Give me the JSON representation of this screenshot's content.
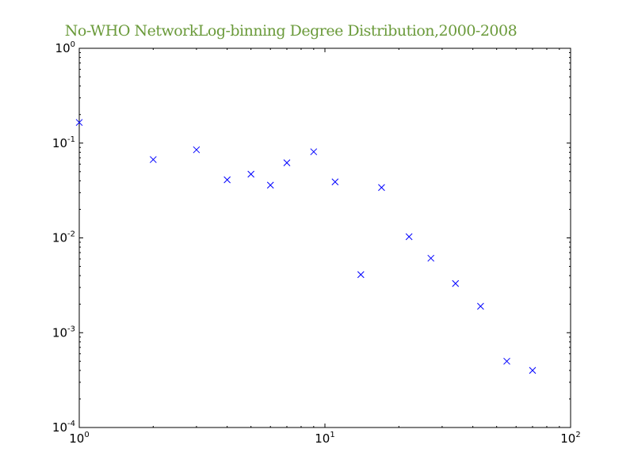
{
  "chart_data": {
    "type": "scatter",
    "title": "No-WHO NetworkLog-binning Degree Distribution,2000-2008",
    "title_color": "#6a9a3a",
    "marker_color": "#0000ff",
    "marker": "x",
    "xscale": "log",
    "yscale": "log",
    "xlim": [
      1,
      100
    ],
    "ylim": [
      0.0001,
      1
    ],
    "grid": false,
    "x_ticks": [
      {
        "base": "10",
        "exp": "0",
        "value": 1
      },
      {
        "base": "10",
        "exp": "1",
        "value": 10
      },
      {
        "base": "10",
        "exp": "2",
        "value": 100
      }
    ],
    "y_ticks": [
      {
        "base": "10",
        "exp": "0",
        "value": 1
      },
      {
        "base": "10",
        "exp": "-1",
        "value": 0.1
      },
      {
        "base": "10",
        "exp": "-2",
        "value": 0.01
      },
      {
        "base": "10",
        "exp": "-3",
        "value": 0.001
      },
      {
        "base": "10",
        "exp": "-4",
        "value": 0.0001
      }
    ],
    "points": [
      {
        "x": 1,
        "y": 0.165
      },
      {
        "x": 2,
        "y": 0.067
      },
      {
        "x": 3,
        "y": 0.085
      },
      {
        "x": 4,
        "y": 0.041
      },
      {
        "x": 5,
        "y": 0.047
      },
      {
        "x": 6,
        "y": 0.036
      },
      {
        "x": 7,
        "y": 0.062
      },
      {
        "x": 9,
        "y": 0.081
      },
      {
        "x": 11,
        "y": 0.039
      },
      {
        "x": 14,
        "y": 0.0041
      },
      {
        "x": 17,
        "y": 0.034
      },
      {
        "x": 22,
        "y": 0.0103
      },
      {
        "x": 27,
        "y": 0.0061
      },
      {
        "x": 34,
        "y": 0.0033
      },
      {
        "x": 43,
        "y": 0.0019
      },
      {
        "x": 55,
        "y": 0.0005
      },
      {
        "x": 70,
        "y": 0.0004
      }
    ]
  }
}
